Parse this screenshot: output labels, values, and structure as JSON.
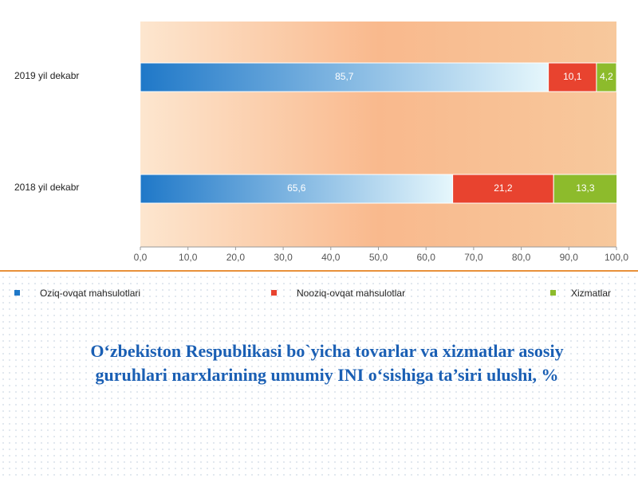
{
  "chart_data": {
    "type": "stacked-bar-horizontal",
    "title": "O‘zbekiston Respublikasi bo`yicha tovarlar va xizmatlar asosiy guruhlari narxlarining umumiy INI o‘sishiga ta’siri ulushi, %",
    "categories": [
      "2019 yil dekabr",
      "2018 yil dekabr"
    ],
    "series": [
      {
        "name": "Oziq-ovqat mahsulotlari",
        "color": "#1f78c8",
        "values": [
          85.7,
          65.6
        ],
        "value_labels": [
          "85,7",
          "65,6"
        ]
      },
      {
        "name": "Nooziq-ovqat mahsulotlar",
        "color": "#e8432f",
        "values": [
          10.1,
          21.2
        ],
        "value_labels": [
          "10,1",
          "21,2"
        ]
      },
      {
        "name": "Xizmatlar",
        "color": "#8dbb2c",
        "values": [
          4.2,
          13.3
        ],
        "value_labels": [
          "4,2",
          "13,3"
        ]
      }
    ],
    "xlim": [
      0,
      100
    ],
    "xticks": [
      {
        "value": 0,
        "label": "0,0"
      },
      {
        "value": 10,
        "label": "10,0"
      },
      {
        "value": 20,
        "label": "20,0"
      },
      {
        "value": 30,
        "label": "30,0"
      },
      {
        "value": 40,
        "label": "40,0"
      },
      {
        "value": 50,
        "label": "50,0"
      },
      {
        "value": 60,
        "label": "60,0"
      },
      {
        "value": 70,
        "label": "70,0"
      },
      {
        "value": 80,
        "label": "80,0"
      },
      {
        "value": 90,
        "label": "90,0"
      },
      {
        "value": 100,
        "label": "100,0"
      }
    ],
    "legend": "bottom"
  }
}
